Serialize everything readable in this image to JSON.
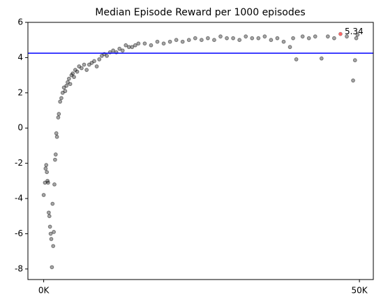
{
  "chart_data": {
    "type": "scatter",
    "title": "Median Episode Reward per 1000 episodes",
    "x": [
      0,
      200,
      300,
      400,
      500,
      600,
      700,
      800,
      900,
      1000,
      1100,
      1200,
      1300,
      1400,
      1500,
      1600,
      1700,
      1800,
      1900,
      2000,
      2100,
      2300,
      2400,
      2600,
      2800,
      3000,
      3200,
      3400,
      3600,
      3800,
      4000,
      4200,
      4400,
      4600,
      4800,
      5000,
      5300,
      5600,
      6000,
      6400,
      6800,
      7200,
      7600,
      8000,
      8400,
      8800,
      9200,
      9600,
      10000,
      10500,
      11000,
      11500,
      12000,
      12500,
      13000,
      13500,
      14000,
      14500,
      15000,
      16000,
      17000,
      18000,
      19000,
      20000,
      21000,
      22000,
      23000,
      24000,
      25000,
      26000,
      27000,
      28000,
      29000,
      30000,
      31000,
      32000,
      33000,
      34000,
      35000,
      36000,
      37000,
      38000,
      39000,
      39500,
      40000,
      41000,
      42000,
      43000,
      44000,
      45000,
      46000,
      47000,
      48000,
      49000,
      49300,
      49500,
      49700
    ],
    "values": [
      -3.8,
      -3.1,
      -2.3,
      -2.1,
      -2.5,
      -3.0,
      -3.1,
      -4.8,
      -5.0,
      -5.6,
      -6.0,
      -6.3,
      -7.9,
      -4.3,
      -6.7,
      -5.9,
      -3.2,
      -1.8,
      -1.5,
      -0.3,
      -0.5,
      0.6,
      0.8,
      1.5,
      1.7,
      2.0,
      2.3,
      2.1,
      2.4,
      2.6,
      2.8,
      2.5,
      3.0,
      3.1,
      2.9,
      3.3,
      3.2,
      3.5,
      3.4,
      3.6,
      3.3,
      3.6,
      3.7,
      3.8,
      3.5,
      3.9,
      4.1,
      4.2,
      4.1,
      4.3,
      4.4,
      4.3,
      4.5,
      4.4,
      4.7,
      4.6,
      4.6,
      4.7,
      4.8,
      4.8,
      4.7,
      4.9,
      4.8,
      4.9,
      5.0,
      4.9,
      5.0,
      5.1,
      5.0,
      5.1,
      5.0,
      5.2,
      5.1,
      5.1,
      5.0,
      5.2,
      5.1,
      5.1,
      5.2,
      5.0,
      5.1,
      4.9,
      4.6,
      5.1,
      3.9,
      5.2,
      5.1,
      5.2,
      3.95,
      5.2,
      5.1,
      5.34,
      5.2,
      2.7,
      3.85,
      5.1,
      5.3
    ],
    "color": "#000000",
    "xlim": [
      -2500,
      52200
    ],
    "xticks": [
      {
        "value": 0,
        "label": "0K"
      },
      {
        "value": 50000,
        "label": "50K"
      }
    ],
    "ylim": [
      -8.6,
      6
    ],
    "yticks": [
      -8,
      -6,
      -4,
      -2,
      0,
      2,
      4,
      6
    ],
    "hline": {
      "y": 4.25,
      "color": "#0000ff"
    },
    "annotation": {
      "x": 47000,
      "y": 5.34,
      "color": "#ff6666"
    }
  }
}
